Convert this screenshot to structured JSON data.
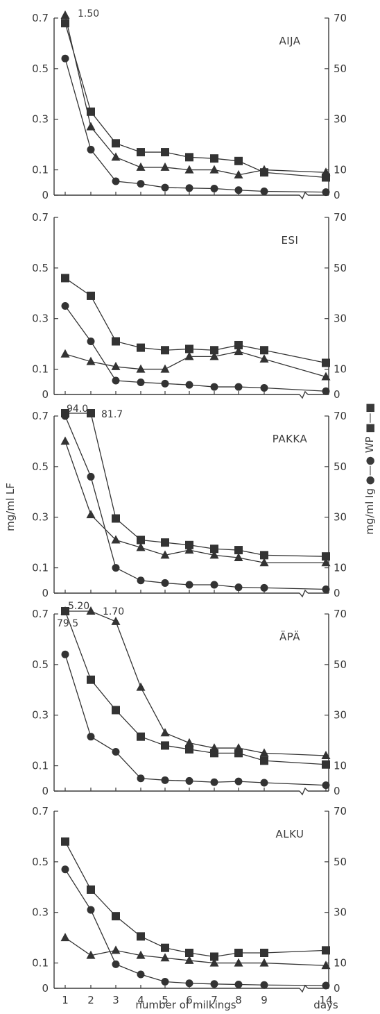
{
  "figure": {
    "left_axis_label": "mg/ml  LF",
    "right_axis_label": "mg/ml  Ig  ●—●   WP  ■—■",
    "x_axis_label": "number of milkings",
    "days_label": "days"
  },
  "colors": {
    "ink": "#333333",
    "background": "#ffffff"
  },
  "chart_data": [
    {
      "type": "line",
      "panel_label": "AIJA",
      "categories": [
        "1",
        "2",
        "3",
        "4",
        "5",
        "6",
        "7",
        "8",
        "9",
        "14"
      ],
      "left_ylim": [
        0,
        0.7
      ],
      "left_ticks": [
        "0",
        "0.1",
        "0.3",
        "0.5",
        "0.7"
      ],
      "right_ylim": [
        0,
        70
      ],
      "right_ticks": [
        "0",
        "10",
        "30",
        "50",
        "70"
      ],
      "series": [
        {
          "marker": "square",
          "axis": "right",
          "values": [
            68,
            33,
            20.5,
            17,
            17,
            15,
            14.5,
            13.5,
            9,
            7
          ]
        },
        {
          "marker": "triangle",
          "axis": "left",
          "values": [
            1.5,
            0.27,
            0.15,
            0.11,
            0.11,
            0.1,
            0.1,
            0.08,
            0.1,
            0.09
          ]
        },
        {
          "marker": "circle",
          "axis": "right",
          "values": [
            54,
            18,
            5.5,
            4.5,
            3,
            2.8,
            2.6,
            2,
            1.5,
            1.2
          ]
        }
      ],
      "annotations": [
        "1.50"
      ]
    },
    {
      "type": "line",
      "panel_label": "ESI",
      "categories": [
        "1",
        "2",
        "3",
        "4",
        "5",
        "6",
        "7",
        "8",
        "9",
        "14"
      ],
      "left_ylim": [
        0,
        0.7
      ],
      "left_ticks": [
        "0",
        "0.1",
        "0.3",
        "0.5",
        "0.7"
      ],
      "right_ylim": [
        0,
        70
      ],
      "right_ticks": [
        "0",
        "10",
        "30",
        "50",
        "70"
      ],
      "series": [
        {
          "marker": "square",
          "axis": "right",
          "values": [
            46,
            39,
            21,
            18.5,
            17.5,
            18,
            17.5,
            19.5,
            17.5,
            12.5
          ]
        },
        {
          "marker": "triangle",
          "axis": "left",
          "values": [
            0.16,
            0.13,
            0.11,
            0.1,
            0.1,
            0.15,
            0.15,
            0.17,
            0.14,
            0.07
          ]
        },
        {
          "marker": "circle",
          "axis": "right",
          "values": [
            35,
            21,
            5.5,
            4.8,
            4.3,
            3.8,
            3,
            3,
            2.6,
            1.3
          ]
        }
      ],
      "annotations": []
    },
    {
      "type": "line",
      "panel_label": "PAKKA",
      "categories": [
        "1",
        "2",
        "3",
        "4",
        "5",
        "6",
        "7",
        "8",
        "9",
        "14"
      ],
      "left_ylim": [
        0,
        0.7
      ],
      "left_ticks": [
        "0",
        "0.1",
        "0.3",
        "0.5",
        "0.7"
      ],
      "right_ylim": [
        0,
        70
      ],
      "right_ticks": [
        "0",
        "10",
        "30",
        "50",
        "70"
      ],
      "series": [
        {
          "marker": "square",
          "axis": "right",
          "values": [
            94.0,
            81.7,
            29.5,
            21,
            20,
            19,
            17.5,
            17,
            15,
            14.5
          ]
        },
        {
          "marker": "triangle",
          "axis": "left",
          "values": [
            0.6,
            0.31,
            0.21,
            0.18,
            0.15,
            0.17,
            0.15,
            0.14,
            0.12,
            0.12
          ]
        },
        {
          "marker": "circle",
          "axis": "right",
          "values": [
            70,
            46,
            10,
            5,
            4,
            3.3,
            3.3,
            2.3,
            2.1,
            1.5
          ]
        }
      ],
      "annotations": [
        "94.0",
        "81.7"
      ]
    },
    {
      "type": "line",
      "panel_label": "ÄPÄ",
      "categories": [
        "1",
        "2",
        "3",
        "4",
        "5",
        "6",
        "7",
        "8",
        "9",
        "14"
      ],
      "left_ylim": [
        0,
        0.7
      ],
      "left_ticks": [
        "0",
        "0.1",
        "0.3",
        "0.5",
        "0.7"
      ],
      "right_ylim": [
        0,
        70
      ],
      "right_ticks": [
        "0",
        "10",
        "30",
        "50",
        "70"
      ],
      "series": [
        {
          "marker": "square",
          "axis": "right",
          "values": [
            79.5,
            44,
            32,
            21.5,
            18,
            16.5,
            15,
            15,
            12,
            10.5
          ]
        },
        {
          "marker": "triangle",
          "axis": "left",
          "values": [
            5.2,
            1.7,
            0.67,
            0.41,
            0.23,
            0.19,
            0.17,
            0.17,
            0.15,
            0.14
          ]
        },
        {
          "marker": "circle",
          "axis": "right",
          "values": [
            54,
            21.5,
            15.5,
            5,
            4.3,
            4,
            3.5,
            3.8,
            3.3,
            2.3
          ]
        }
      ],
      "annotations": [
        "5.20",
        "1.70",
        "79.5"
      ]
    },
    {
      "type": "line",
      "panel_label": "ALKU",
      "categories": [
        "1",
        "2",
        "3",
        "4",
        "5",
        "6",
        "7",
        "8",
        "9",
        "14"
      ],
      "left_ylim": [
        0,
        0.7
      ],
      "left_ticks": [
        "0",
        "0.1",
        "0.3",
        "0.5",
        "0.7"
      ],
      "right_ylim": [
        0,
        70
      ],
      "right_ticks": [
        "0",
        "10",
        "30",
        "50",
        "70"
      ],
      "series": [
        {
          "marker": "square",
          "axis": "right",
          "values": [
            58,
            39,
            28.5,
            20.5,
            16,
            14,
            12.5,
            14,
            14,
            15
          ]
        },
        {
          "marker": "triangle",
          "axis": "left",
          "values": [
            0.2,
            0.13,
            0.15,
            0.13,
            0.12,
            0.11,
            0.1,
            0.1,
            0.1,
            0.09
          ]
        },
        {
          "marker": "circle",
          "axis": "right",
          "values": [
            47,
            31,
            9.5,
            5.5,
            2.6,
            2,
            1.7,
            1.5,
            1.3,
            1.1
          ]
        }
      ],
      "annotations": []
    }
  ]
}
